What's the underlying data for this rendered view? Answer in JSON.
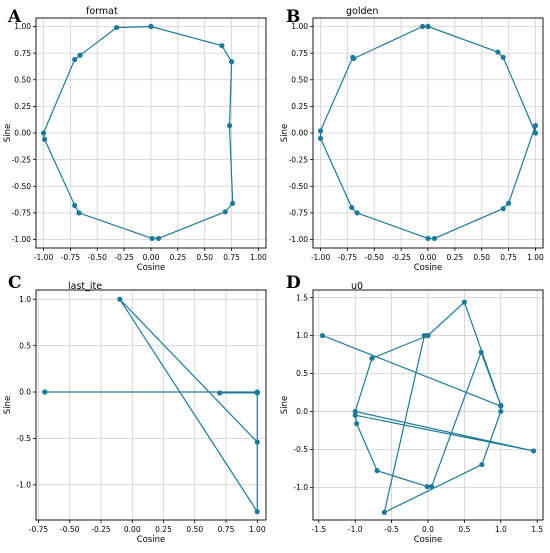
{
  "figure": {
    "color": "#1f7a9a",
    "panel_letters": [
      "A",
      "B",
      "C",
      "D"
    ]
  },
  "chart_data": [
    {
      "type": "line",
      "title": "format",
      "xlabel": "Cosine",
      "ylabel": "Sine",
      "xlim": [
        -1.07,
        1.07
      ],
      "ylim": [
        -1.08,
        1.08
      ],
      "xticks": [
        -1.0,
        -0.75,
        -0.5,
        -0.25,
        0.0,
        0.25,
        0.5,
        0.75,
        1.0
      ],
      "xtick_labels": [
        "-1.00",
        "-0.75",
        "-0.50",
        "-0.25",
        "0.00",
        "0.25",
        "0.50",
        "0.75",
        "1.00"
      ],
      "yticks": [
        -1.0,
        -0.75,
        -0.5,
        -0.25,
        0.0,
        0.25,
        0.5,
        0.75,
        1.0
      ],
      "ytick_labels": [
        "-1.00",
        "-0.75",
        "-0.50",
        "-0.25",
        "0.00",
        "0.25",
        "0.50",
        "0.75",
        "1.00"
      ],
      "grid": true,
      "marker": "circle",
      "x": [
        0.0,
        -0.32,
        -0.66,
        -0.71,
        -1.0,
        -0.99,
        -0.71,
        -0.67,
        0.01,
        0.07,
        0.69,
        0.76,
        0.73,
        0.75,
        0.66,
        0.0
      ],
      "y": [
        1.0,
        0.99,
        0.73,
        0.69,
        0.0,
        -0.06,
        -0.68,
        -0.75,
        -0.99,
        -0.99,
        -0.74,
        -0.66,
        0.07,
        0.67,
        0.82,
        1.0
      ]
    },
    {
      "type": "line",
      "title": "golden",
      "xlabel": "Cosine",
      "ylabel": "Sine",
      "xlim": [
        -1.07,
        1.07
      ],
      "ylim": [
        -1.08,
        1.08
      ],
      "xticks": [
        -1.0,
        -0.75,
        -0.5,
        -0.25,
        0.0,
        0.25,
        0.5,
        0.75,
        1.0
      ],
      "xtick_labels": [
        "-1.00",
        "-0.75",
        "-0.50",
        "-0.25",
        "0.00",
        "0.25",
        "0.50",
        "0.75",
        "1.00"
      ],
      "yticks": [
        -1.0,
        -0.75,
        -0.5,
        -0.25,
        0.0,
        0.25,
        0.5,
        0.75,
        1.0
      ],
      "ytick_labels": [
        "-1.00",
        "-0.75",
        "-0.50",
        "-0.25",
        "0.00",
        "0.25",
        "0.50",
        "0.75",
        "1.00"
      ],
      "grid": true,
      "marker": "circle",
      "x": [
        0.0,
        -0.05,
        -0.69,
        -0.7,
        -1.0,
        -1.0,
        -0.71,
        -0.66,
        0.0,
        0.06,
        0.7,
        0.75,
        1.0,
        1.0,
        0.7,
        0.65,
        0.0
      ],
      "y": [
        1.0,
        1.0,
        0.7,
        0.71,
        0.02,
        -0.05,
        -0.7,
        -0.75,
        -0.99,
        -0.99,
        -0.71,
        -0.66,
        0.07,
        0.0,
        0.71,
        0.76,
        1.0
      ]
    },
    {
      "type": "line",
      "title": "last_ite",
      "xlabel": "Cosine",
      "ylabel": "Sine",
      "xlim": [
        -0.77,
        1.07
      ],
      "ylim": [
        -1.38,
        1.1
      ],
      "xticks": [
        -0.75,
        -0.5,
        -0.25,
        0.0,
        0.25,
        0.5,
        0.75,
        1.0
      ],
      "xtick_labels": [
        "-0.75",
        "-0.50",
        "-0.25",
        "0.00",
        "0.25",
        "0.50",
        "0.75",
        "1.00"
      ],
      "yticks": [
        -1.0,
        -0.5,
        0.0,
        0.5,
        1.0
      ],
      "ytick_labels": [
        "-1.0",
        "-0.5",
        "0.0",
        "0.5",
        "1.0"
      ],
      "grid": true,
      "marker": "circle",
      "x": [
        -0.7,
        1.0,
        1.0,
        -0.1,
        1.0,
        1.0,
        0.7
      ],
      "y": [
        0.0,
        0.0,
        -1.29,
        1.0,
        -0.54,
        -0.01,
        -0.01
      ]
    },
    {
      "type": "line",
      "title": "u0",
      "xlabel": "Cosine",
      "ylabel": "Sine",
      "xlim": [
        -1.58,
        1.58
      ],
      "ylim": [
        -1.43,
        1.6
      ],
      "xticks": [
        -1.5,
        -1.0,
        -0.5,
        0.0,
        0.5,
        1.0,
        1.5
      ],
      "xtick_labels": [
        "-1.5",
        "-1.0",
        "-0.5",
        "0.0",
        "0.5",
        "1.0",
        "1.5"
      ],
      "yticks": [
        -1.0,
        -0.5,
        0.0,
        0.5,
        1.0,
        1.5
      ],
      "ytick_labels": [
        "-1.0",
        "-0.5",
        "0.0",
        "0.5",
        "1.0",
        "1.5"
      ],
      "grid": true,
      "marker": "circle",
      "x": [
        -1.45,
        1.0,
        1.0,
        0.74,
        -0.6,
        -0.05,
        0.0,
        0.5,
        1.0,
        0.73,
        0.05,
        -0.01,
        -0.7,
        -0.98,
        -1.0,
        1.45,
        -1.0,
        -0.77,
        0.0,
        -0.05
      ],
      "y": [
        1.0,
        0.07,
        0.0,
        -0.7,
        -1.33,
        1.0,
        1.0,
        1.44,
        0.08,
        0.78,
        -0.99,
        -0.99,
        -0.78,
        -0.16,
        -0.05,
        -0.52,
        0.0,
        0.7,
        1.0,
        1.0
      ]
    }
  ]
}
